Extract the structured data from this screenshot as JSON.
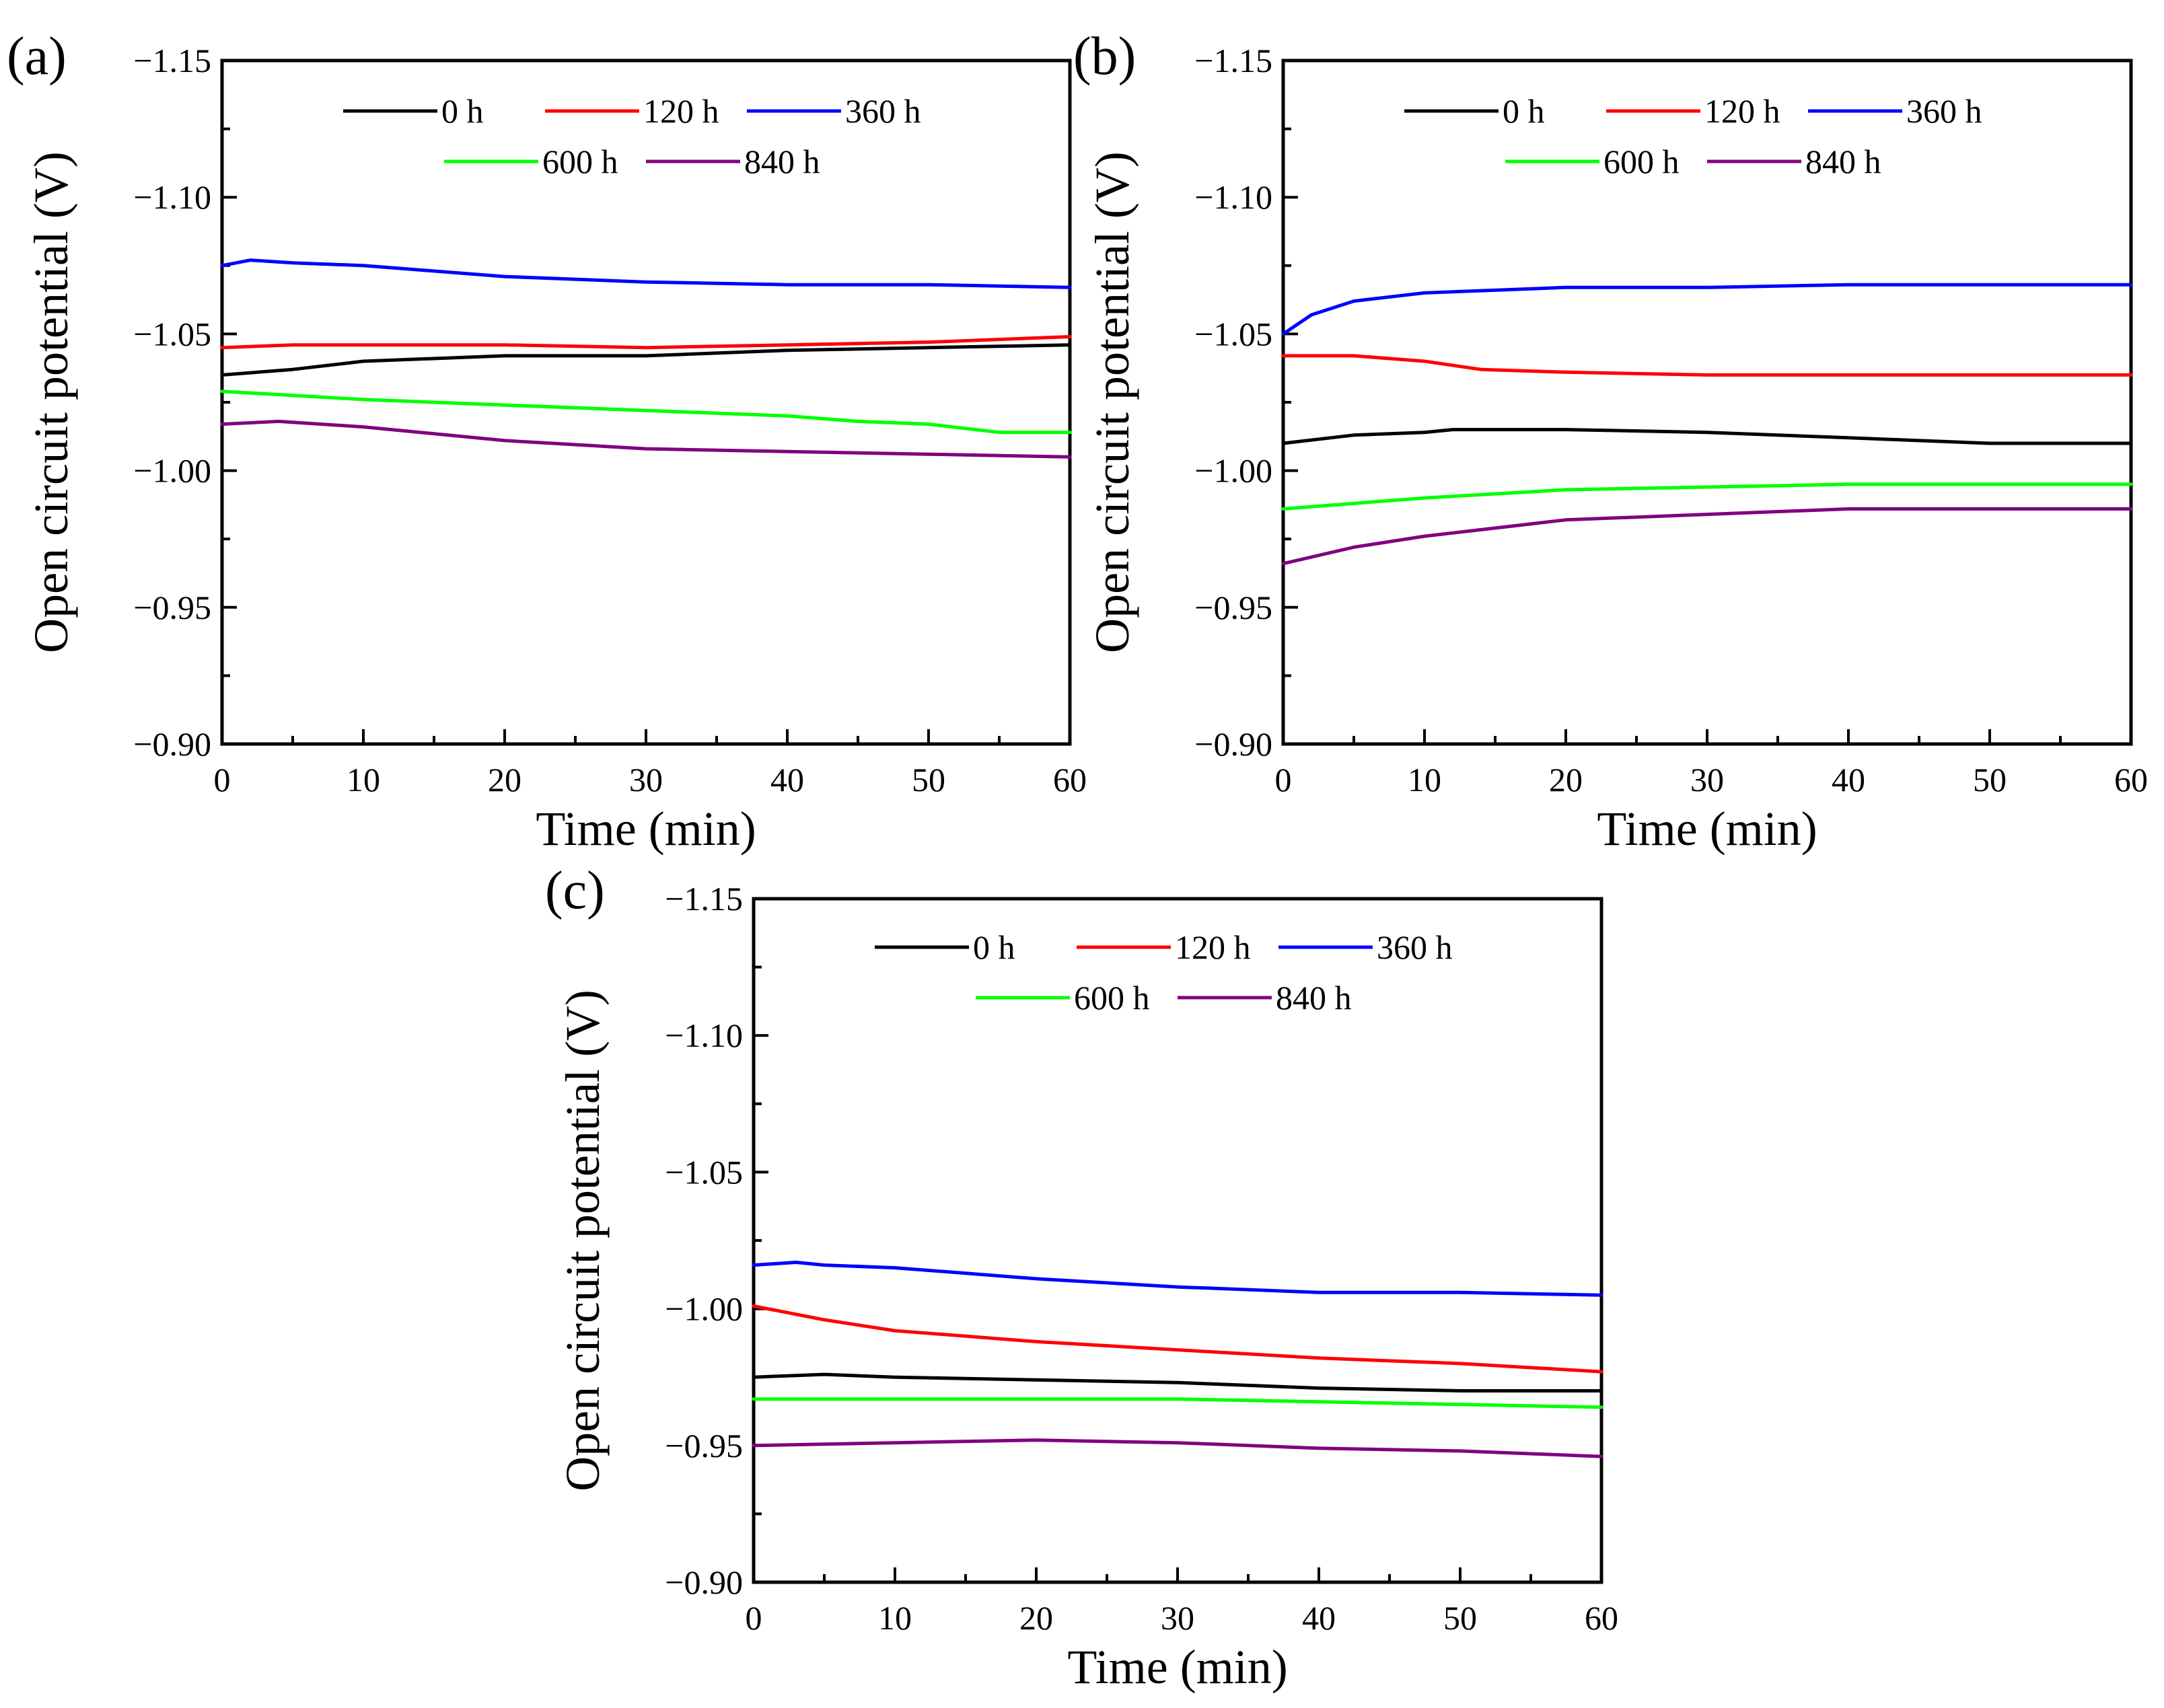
{
  "chart_data": [
    {
      "type": "line",
      "panel_label": "(a)",
      "xlabel": "Time (min)",
      "ylabel": "Open circuit potential (V)",
      "xlim": [
        0,
        60
      ],
      "ylim": [
        -0.9,
        -1.15
      ],
      "xticks": [
        0,
        10,
        20,
        30,
        40,
        50,
        60
      ],
      "yticks": [
        -0.9,
        -0.95,
        -1.0,
        -1.05,
        -1.1,
        -1.15
      ],
      "xtick_labels": [
        "0",
        "10",
        "20",
        "30",
        "40",
        "50",
        "60"
      ],
      "ytick_labels": [
        "−0.90",
        "−0.95",
        "−1.00",
        "−1.05",
        "−1.10",
        "−1.15"
      ],
      "legend": "top-center",
      "series": [
        {
          "name": "0 h",
          "color": "#000000",
          "x": [
            0,
            5,
            10,
            20,
            30,
            40,
            50,
            60
          ],
          "y": [
            -1.035,
            -1.037,
            -1.04,
            -1.042,
            -1.042,
            -1.044,
            -1.045,
            -1.046
          ]
        },
        {
          "name": "120 h",
          "color": "#ff0000",
          "x": [
            0,
            5,
            10,
            20,
            30,
            40,
            50,
            60
          ],
          "y": [
            -1.045,
            -1.046,
            -1.046,
            -1.046,
            -1.045,
            -1.046,
            -1.047,
            -1.049
          ]
        },
        {
          "name": "360 h",
          "color": "#0000ff",
          "x": [
            0,
            2,
            5,
            10,
            20,
            30,
            40,
            50,
            60
          ],
          "y": [
            -1.075,
            -1.077,
            -1.076,
            -1.075,
            -1.071,
            -1.069,
            -1.068,
            -1.068,
            -1.067
          ]
        },
        {
          "name": "600 h",
          "color": "#00ff00",
          "x": [
            0,
            10,
            20,
            30,
            40,
            45,
            50,
            55,
            60
          ],
          "y": [
            -1.029,
            -1.026,
            -1.024,
            -1.022,
            -1.02,
            -1.018,
            -1.017,
            -1.014,
            -1.014
          ]
        },
        {
          "name": "840 h",
          "color": "#800080",
          "x": [
            0,
            4,
            10,
            20,
            30,
            40,
            50,
            60
          ],
          "y": [
            -1.017,
            -1.018,
            -1.016,
            -1.011,
            -1.008,
            -1.007,
            -1.006,
            -1.005
          ]
        }
      ]
    },
    {
      "type": "line",
      "panel_label": "(b)",
      "xlabel": "Time (min)",
      "ylabel": "Open circuit potential (V)",
      "xlim": [
        0,
        60
      ],
      "ylim": [
        -0.9,
        -1.15
      ],
      "xticks": [
        0,
        10,
        20,
        30,
        40,
        50,
        60
      ],
      "yticks": [
        -0.9,
        -0.95,
        -1.0,
        -1.05,
        -1.1,
        -1.15
      ],
      "xtick_labels": [
        "0",
        "10",
        "20",
        "30",
        "40",
        "50",
        "60"
      ],
      "ytick_labels": [
        "−0.90",
        "−0.95",
        "−1.00",
        "−1.05",
        "−1.10",
        "−1.15"
      ],
      "legend": "top-center",
      "series": [
        {
          "name": "0 h",
          "color": "#000000",
          "x": [
            0,
            5,
            10,
            12,
            20,
            30,
            40,
            50,
            60
          ],
          "y": [
            -1.01,
            -1.013,
            -1.014,
            -1.015,
            -1.015,
            -1.014,
            -1.012,
            -1.01,
            -1.01
          ]
        },
        {
          "name": "120 h",
          "color": "#ff0000",
          "x": [
            0,
            5,
            10,
            14,
            20,
            30,
            40,
            50,
            60
          ],
          "y": [
            -1.042,
            -1.042,
            -1.04,
            -1.037,
            -1.036,
            -1.035,
            -1.035,
            -1.035,
            -1.035
          ]
        },
        {
          "name": "360 h",
          "color": "#0000ff",
          "x": [
            0,
            2,
            5,
            10,
            20,
            30,
            40,
            50,
            60
          ],
          "y": [
            -1.05,
            -1.057,
            -1.062,
            -1.065,
            -1.067,
            -1.067,
            -1.068,
            -1.068,
            -1.068
          ]
        },
        {
          "name": "600 h",
          "color": "#00ff00",
          "x": [
            0,
            10,
            20,
            30,
            40,
            50,
            60
          ],
          "y": [
            -0.986,
            -0.99,
            -0.993,
            -0.994,
            -0.995,
            -0.995,
            -0.995
          ]
        },
        {
          "name": "840 h",
          "color": "#800080",
          "x": [
            0,
            5,
            10,
            20,
            30,
            40,
            50,
            60
          ],
          "y": [
            -0.966,
            -0.972,
            -0.976,
            -0.982,
            -0.984,
            -0.986,
            -0.986,
            -0.986
          ]
        }
      ]
    },
    {
      "type": "line",
      "panel_label": "(c)",
      "xlabel": "Time (min)",
      "ylabel": "Open circuit potential (V)",
      "xlim": [
        0,
        60
      ],
      "ylim": [
        -0.9,
        -1.15
      ],
      "xticks": [
        0,
        10,
        20,
        30,
        40,
        50,
        60
      ],
      "yticks": [
        -0.9,
        -0.95,
        -1.0,
        -1.05,
        -1.1,
        -1.15
      ],
      "xtick_labels": [
        "0",
        "10",
        "20",
        "30",
        "40",
        "50",
        "60"
      ],
      "ytick_labels": [
        "−0.90",
        "−0.95",
        "−1.00",
        "−1.05",
        "−1.10",
        "−1.15"
      ],
      "legend": "top-center",
      "series": [
        {
          "name": "0 h",
          "color": "#000000",
          "x": [
            0,
            5,
            10,
            20,
            30,
            40,
            50,
            60
          ],
          "y": [
            -0.975,
            -0.976,
            -0.975,
            -0.974,
            -0.973,
            -0.971,
            -0.97,
            -0.97
          ]
        },
        {
          "name": "120 h",
          "color": "#ff0000",
          "x": [
            0,
            5,
            10,
            20,
            30,
            40,
            50,
            60
          ],
          "y": [
            -1.001,
            -0.996,
            -0.992,
            -0.988,
            -0.985,
            -0.982,
            -0.98,
            -0.977
          ]
        },
        {
          "name": "360 h",
          "color": "#0000ff",
          "x": [
            0,
            3,
            5,
            10,
            20,
            30,
            40,
            50,
            60
          ],
          "y": [
            -1.016,
            -1.017,
            -1.016,
            -1.015,
            -1.011,
            -1.008,
            -1.006,
            -1.006,
            -1.005
          ]
        },
        {
          "name": "600 h",
          "color": "#00ff00",
          "x": [
            0,
            10,
            20,
            30,
            40,
            50,
            60
          ],
          "y": [
            -0.967,
            -0.967,
            -0.967,
            -0.967,
            -0.966,
            -0.965,
            -0.964
          ]
        },
        {
          "name": "840 h",
          "color": "#800080",
          "x": [
            0,
            10,
            20,
            30,
            40,
            50,
            60
          ],
          "y": [
            -0.95,
            -0.951,
            -0.952,
            -0.951,
            -0.949,
            -0.948,
            -0.946
          ]
        }
      ]
    }
  ]
}
